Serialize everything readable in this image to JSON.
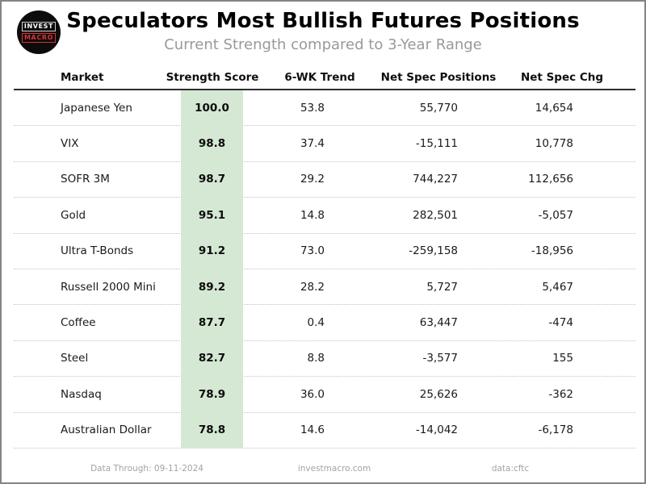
{
  "logo": {
    "line1": "INVEST",
    "line2": "MACRO"
  },
  "header": {
    "title": "Speculators Most Bullish Futures Positions",
    "subtitle": "Current Strength compared to 3-Year Range"
  },
  "table": {
    "columns": [
      "Market",
      "Strength Score",
      "6-WK Trend",
      "Net Spec Positions",
      "Net Spec Chg"
    ],
    "rows": [
      {
        "market": "Japanese Yen",
        "score": "100.0",
        "trend": "53.8",
        "net_spec_positions": "55,770",
        "net_spec_chg": "14,654"
      },
      {
        "market": "VIX",
        "score": "98.8",
        "trend": "37.4",
        "net_spec_positions": "-15,111",
        "net_spec_chg": "10,778"
      },
      {
        "market": "SOFR 3M",
        "score": "98.7",
        "trend": "29.2",
        "net_spec_positions": "744,227",
        "net_spec_chg": "112,656"
      },
      {
        "market": "Gold",
        "score": "95.1",
        "trend": "14.8",
        "net_spec_positions": "282,501",
        "net_spec_chg": "-5,057"
      },
      {
        "market": "Ultra T-Bonds",
        "score": "91.2",
        "trend": "73.0",
        "net_spec_positions": "-259,158",
        "net_spec_chg": "-18,956"
      },
      {
        "market": "Russell 2000 Mini",
        "score": "89.2",
        "trend": "28.2",
        "net_spec_positions": "5,727",
        "net_spec_chg": "5,467"
      },
      {
        "market": "Coffee",
        "score": "87.7",
        "trend": "0.4",
        "net_spec_positions": "63,447",
        "net_spec_chg": "-474"
      },
      {
        "market": "Steel",
        "score": "82.7",
        "trend": "8.8",
        "net_spec_positions": "-3,577",
        "net_spec_chg": "155"
      },
      {
        "market": "Nasdaq",
        "score": "78.9",
        "trend": "36.0",
        "net_spec_positions": "25,626",
        "net_spec_chg": "-362"
      },
      {
        "market": "Australian Dollar",
        "score": "78.8",
        "trend": "14.6",
        "net_spec_positions": "-14,042",
        "net_spec_chg": "-6,178"
      }
    ]
  },
  "footer": {
    "data_through": "Data Through: 09-11-2024",
    "website": "investmacro.com",
    "source": "data:cftc"
  },
  "colors": {
    "score_band_green": "#d5e8d4",
    "logo_red": "#e03131",
    "subtitle_gray": "#999999",
    "divider_gray": "#c2c2c2"
  },
  "chart_data": {
    "type": "table",
    "title": "Speculators Most Bullish Futures Positions",
    "subtitle": "Current Strength compared to 3-Year Range",
    "columns": [
      "Market",
      "Strength Score",
      "6-WK Trend",
      "Net Spec Positions",
      "Net Spec Chg"
    ],
    "rows": [
      [
        "Japanese Yen",
        100.0,
        53.8,
        55770,
        14654
      ],
      [
        "VIX",
        98.8,
        37.4,
        -15111,
        10778
      ],
      [
        "SOFR 3M",
        98.7,
        29.2,
        744227,
        112656
      ],
      [
        "Gold",
        95.1,
        14.8,
        282501,
        -5057
      ],
      [
        "Ultra T-Bonds",
        91.2,
        73.0,
        -259158,
        -18956
      ],
      [
        "Russell 2000 Mini",
        89.2,
        28.2,
        5727,
        5467
      ],
      [
        "Coffee",
        87.7,
        0.4,
        63447,
        -474
      ],
      [
        "Steel",
        82.7,
        8.8,
        -3577,
        155
      ],
      [
        "Nasdaq",
        78.9,
        36.0,
        25626,
        -362
      ],
      [
        "Australian Dollar",
        78.8,
        14.6,
        -14042,
        -6178
      ]
    ],
    "highlighted_column": "Strength Score",
    "footer": [
      "Data Through: 09-11-2024",
      "investmacro.com",
      "data:cftc"
    ]
  }
}
